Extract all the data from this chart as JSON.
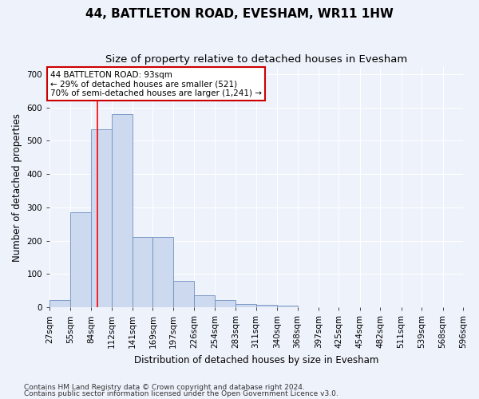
{
  "title": "44, BATTLETON ROAD, EVESHAM, WR11 1HW",
  "subtitle": "Size of property relative to detached houses in Evesham",
  "xlabel": "Distribution of detached houses by size in Evesham",
  "ylabel": "Number of detached properties",
  "footnote1": "Contains HM Land Registry data © Crown copyright and database right 2024.",
  "footnote2": "Contains public sector information licensed under the Open Government Licence v3.0.",
  "annotation_line1": "44 BATTLETON ROAD: 93sqm",
  "annotation_line2": "← 29% of detached houses are smaller (521)",
  "annotation_line3": "70% of semi-detached houses are larger (1,241) →",
  "bar_color": "#ccd9ee",
  "bar_edge_color": "#7090c0",
  "red_line_x": 93,
  "bin_edges": [
    27,
    55,
    84,
    112,
    141,
    169,
    197,
    226,
    254,
    283,
    311,
    340,
    368,
    397,
    425,
    454,
    482,
    511,
    539,
    568,
    596
  ],
  "bar_values": [
    22,
    285,
    535,
    580,
    210,
    210,
    80,
    35,
    22,
    10,
    8,
    5,
    0,
    0,
    0,
    0,
    0,
    0,
    0,
    0
  ],
  "ylim": [
    0,
    720
  ],
  "yticks": [
    0,
    100,
    200,
    300,
    400,
    500,
    600,
    700
  ],
  "background_color": "#eef2fb",
  "grid_color": "#ffffff",
  "annotation_box_bg": "#ffffff",
  "annotation_box_edge": "#cc0000",
  "title_fontsize": 11,
  "subtitle_fontsize": 9.5,
  "axis_label_fontsize": 8.5,
  "tick_fontsize": 7.5,
  "footnote_fontsize": 6.5
}
